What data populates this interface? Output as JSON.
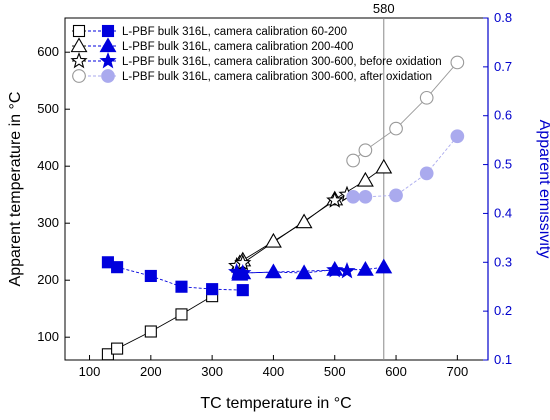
{
  "chart_data": {
    "type": "scatter",
    "xlabel": "TC temperature in °C",
    "ylabel": "Apparent temperature in °C",
    "y2label": "Apparent emissivity",
    "xlim": [
      60,
      750
    ],
    "ylim": [
      60,
      660
    ],
    "y2lim": [
      0.1,
      0.8
    ],
    "xticks": [
      100,
      200,
      300,
      400,
      500,
      600,
      700
    ],
    "yticks": [
      100,
      200,
      300,
      400,
      500,
      600
    ],
    "y2ticks": [
      0.1,
      0.2,
      0.3,
      0.4,
      0.5,
      0.6,
      0.7,
      0.8
    ],
    "grid": false,
    "legend_position": "top-left",
    "annotation": {
      "x": 580,
      "label": "580"
    },
    "colors": {
      "black": "#000000",
      "blue": "#0000dd",
      "gray": "#999999",
      "light_blue": "#aaaaee",
      "right_axis": "#0000cc"
    },
    "series": [
      {
        "name": "L-PBF bulk 316L, camera calibration 60-200",
        "marker": "square",
        "x": [
          130,
          145,
          200,
          250,
          300,
          350
        ],
        "temperature": [
          70,
          80,
          110,
          140,
          172,
          null
        ],
        "emissivity": [
          0.3,
          0.29,
          0.272,
          0.25,
          0.245,
          0.243
        ]
      },
      {
        "name": "L-PBF bulk 316L, camera calibration 200-400",
        "marker": "triangle",
        "x": [
          345,
          350,
          400,
          450,
          500,
          550,
          580
        ],
        "temperature": [
          230,
          235,
          268,
          302,
          342,
          375,
          398
        ],
        "emissivity": [
          0.275,
          0.278,
          0.28,
          0.278,
          0.285,
          0.285,
          0.29
        ]
      },
      {
        "name": "L-PBF bulk 316L, camera calibration 300-600, before oxidation",
        "marker": "star",
        "x": [
          340,
          350,
          500,
          520
        ],
        "temperature": [
          225,
          230,
          340,
          350
        ],
        "emissivity": [
          0.28,
          0.278,
          0.284,
          0.282
        ]
      },
      {
        "name": "L-PBF bulk 316L, camera calibration 300-600, after oxidation",
        "marker": "circle",
        "x": [
          530,
          550,
          600,
          650,
          700
        ],
        "temperature": [
          410,
          428,
          466,
          520,
          582
        ],
        "emissivity": [
          0.434,
          0.434,
          0.437,
          0.482,
          0.558
        ]
      }
    ]
  }
}
